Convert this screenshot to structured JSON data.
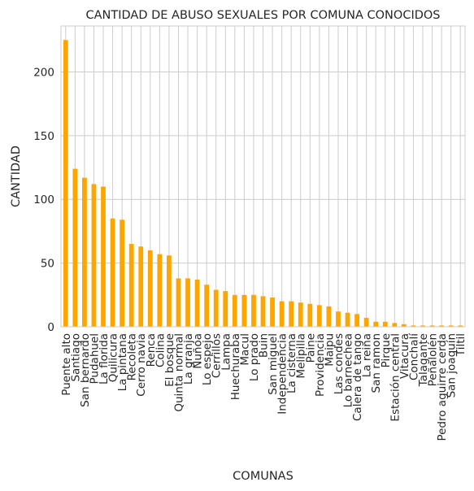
{
  "chart_data": {
    "type": "bar",
    "title": "CANTIDAD DE ABUSO SEXUALES POR COMUNA CONOCIDOS",
    "xlabel": "COMUNAS",
    "ylabel": "CANTIDAD",
    "ylim": [
      0,
      236
    ],
    "yticks": [
      0,
      50,
      100,
      150,
      200
    ],
    "grid": true,
    "bar_color": "#ffa500",
    "grid_color": "#cccccc",
    "categories": [
      "Puente alto",
      "Santiago",
      "San bernardo",
      "Pudahuel",
      "La florida",
      "Quilicura",
      "La pintana",
      "Recoleta",
      "Cerro navia",
      "Renca",
      "Colina",
      "El bosque",
      "Quinta normal",
      "La granja",
      "Ñuñoa",
      "Lo espejo",
      "Cerrillos",
      "Lampa",
      "Huechuraba",
      "Macul",
      "Lo prado",
      "Buin",
      "San miguel",
      "Independencia",
      "La cisterna",
      "Melipilla",
      "Paine",
      "Providencia",
      "Maipu",
      "Las condes",
      "Lo barnechea",
      "Calera de tango",
      "La reina",
      "San ramon",
      "Pirque",
      "Estación central",
      "Vitacura",
      "Conchalí",
      "Talagante",
      "Peñalolén",
      "Pedro aguirre cerda",
      "San joaquín",
      "Tiltil"
    ],
    "values": [
      225,
      124,
      117,
      112,
      110,
      85,
      84,
      65,
      63,
      60,
      57,
      56,
      38,
      38,
      37,
      33,
      29,
      28,
      25,
      25,
      25,
      24,
      23,
      20,
      20,
      19,
      18,
      17,
      16,
      12,
      11,
      10,
      7,
      4,
      4,
      3,
      2,
      1,
      1,
      1,
      1,
      1,
      1
    ]
  }
}
